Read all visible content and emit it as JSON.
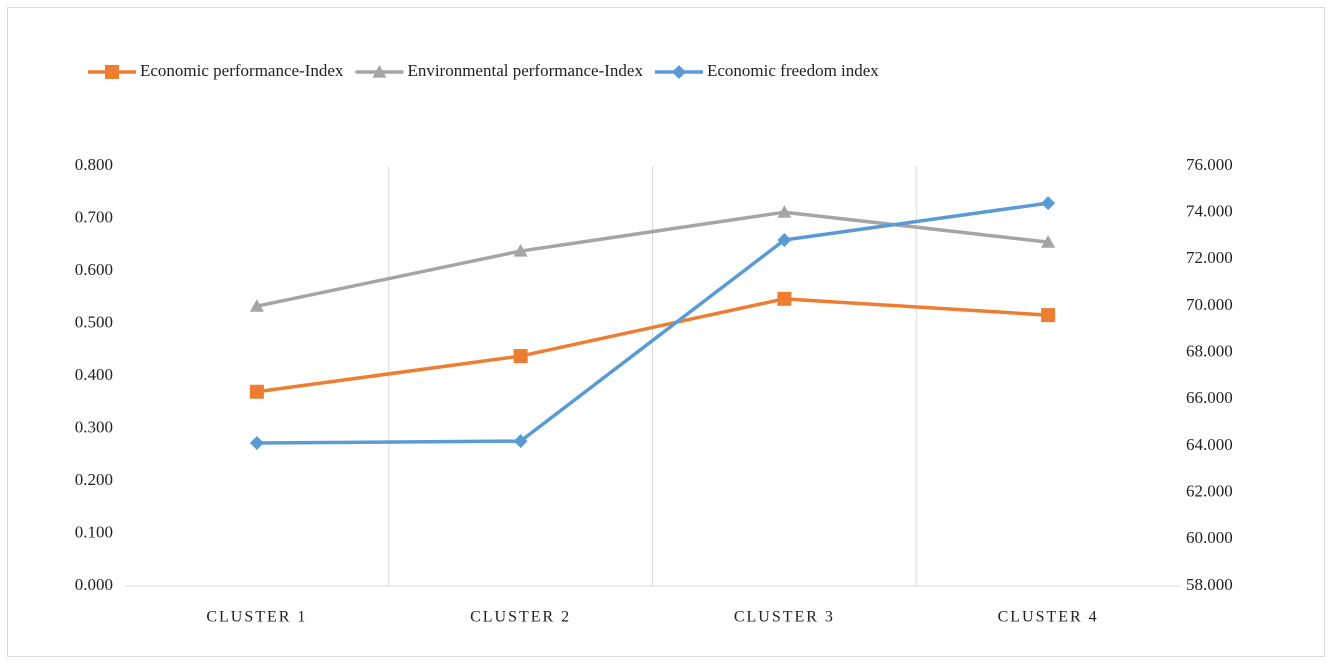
{
  "chart_data": {
    "type": "line",
    "categories": [
      "CLUSTER 1",
      "CLUSTER 2",
      "CLUSTER 3",
      "CLUSTER 4"
    ],
    "series": [
      {
        "name": "Economic performance-Index",
        "color": "#ed7d31",
        "marker": "square",
        "values": [
          0.37,
          0.438,
          0.547,
          0.516
        ]
      },
      {
        "name": "Environmental performance-Index",
        "color": "#a5a5a5",
        "marker": "triangle",
        "values": [
          0.533,
          0.638,
          0.712,
          0.655
        ]
      },
      {
        "name": "Economic freedom index",
        "color": "#5b9bd5",
        "marker": "diamond",
        "axis": "y2",
        "values": [
          64.13,
          64.21,
          72.83,
          74.41
        ]
      }
    ],
    "ylim": [
      0,
      0.8
    ],
    "yticks": [
      {
        "value": 0,
        "label": "0.000"
      },
      {
        "value": 0.1,
        "label": "0.100"
      },
      {
        "value": 0.2,
        "label": "0.200"
      },
      {
        "value": 0.3,
        "label": "0.300"
      },
      {
        "value": 0.4,
        "label": "0.400"
      },
      {
        "value": 0.5,
        "label": "0.500"
      },
      {
        "value": 0.6,
        "label": "0.600"
      },
      {
        "value": 0.7,
        "label": "0.700"
      },
      {
        "value": 0.8,
        "label": "0.800"
      }
    ],
    "y2lim": [
      58,
      76
    ],
    "y2ticks": [
      {
        "value": 58,
        "label": "58.000"
      },
      {
        "value": 60,
        "label": "60.000"
      },
      {
        "value": 62,
        "label": "62.000"
      },
      {
        "value": 64,
        "label": "64.000"
      },
      {
        "value": 66,
        "label": "66.000"
      },
      {
        "value": 68,
        "label": "68.000"
      },
      {
        "value": 70,
        "label": "70.000"
      },
      {
        "value": 72,
        "label": "72.000"
      },
      {
        "value": 74,
        "label": "74.000"
      },
      {
        "value": 76,
        "label": "76.000"
      }
    ],
    "legend": "top"
  }
}
